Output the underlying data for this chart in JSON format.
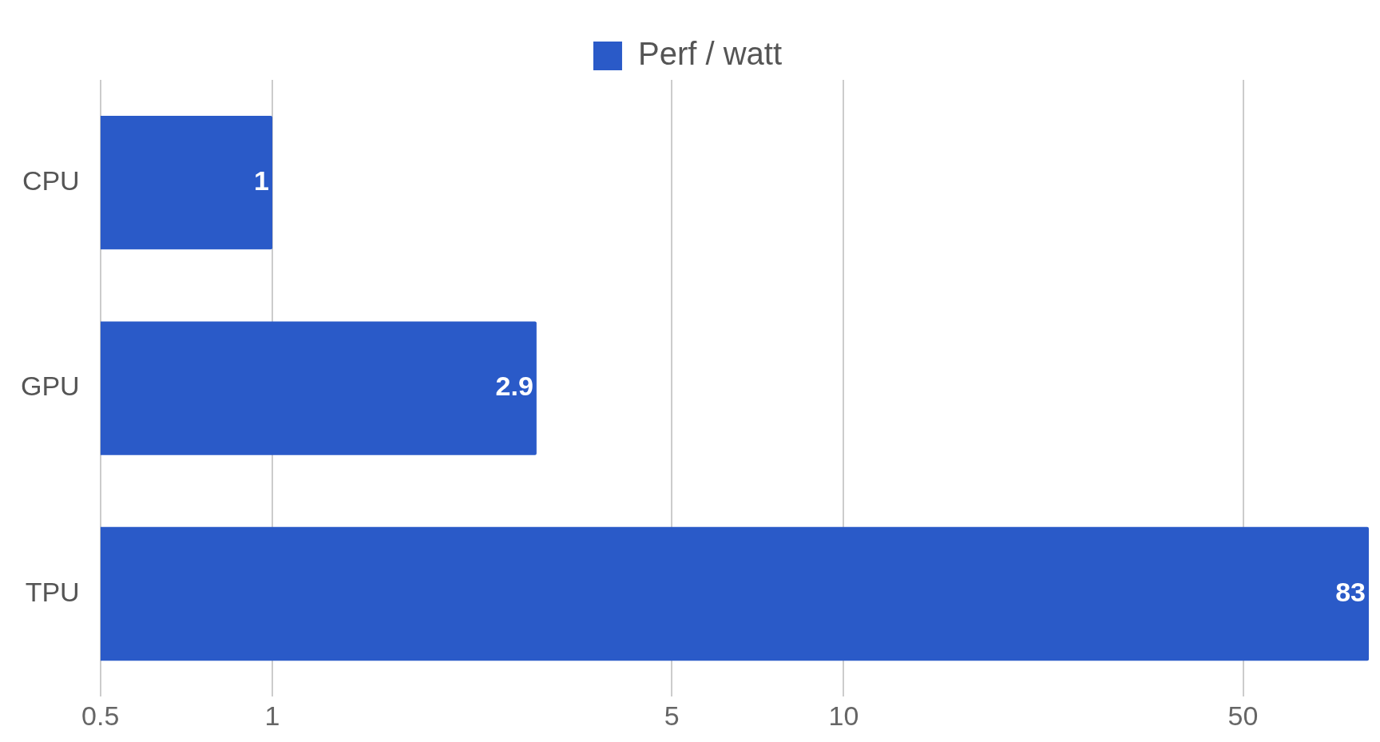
{
  "chart_data": {
    "type": "bar",
    "orientation": "horizontal",
    "categories": [
      "CPU",
      "GPU",
      "TPU"
    ],
    "series": [
      {
        "name": "Perf / watt",
        "color": "#2a5ac8",
        "values": [
          1,
          2.9,
          83
        ]
      }
    ],
    "log": "x",
    "xlim": [
      0.5,
      83
    ],
    "xticks": [
      0.5,
      1,
      5,
      10,
      50
    ],
    "grid": "x",
    "legend": "top",
    "data_labels": true
  }
}
